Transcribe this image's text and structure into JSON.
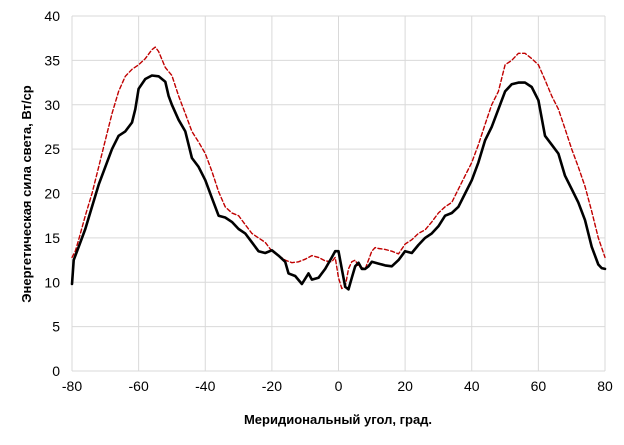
{
  "chart_data": {
    "type": "line",
    "xlabel": "Меридиональный  угол, град.",
    "ylabel": "Энергетическая  сила света, Вт/ср",
    "xlim": [
      -80,
      80
    ],
    "ylim": [
      0,
      40
    ],
    "x_ticks": [
      -80,
      -60,
      -40,
      -20,
      0,
      20,
      40,
      60,
      80
    ],
    "y_ticks": [
      0,
      5,
      10,
      15,
      20,
      25,
      30,
      35,
      40
    ],
    "x_tick_labels": [
      "-80",
      "-60",
      "-40",
      "-20",
      "0",
      "20",
      "40",
      "60",
      "80"
    ],
    "y_tick_labels": [
      "0",
      "5",
      "10",
      "15",
      "20",
      "25",
      "30",
      "35",
      "40"
    ],
    "grid": true,
    "legend": "none",
    "series": [
      {
        "color": "#000000",
        "style": "solid",
        "points": [
          [
            -80,
            9.8
          ],
          [
            -79.5,
            12.5
          ],
          [
            -78,
            14
          ],
          [
            -76,
            16
          ],
          [
            -74,
            18.5
          ],
          [
            -72,
            21
          ],
          [
            -70,
            23
          ],
          [
            -68,
            25
          ],
          [
            -66,
            26.5
          ],
          [
            -64,
            27
          ],
          [
            -62,
            28
          ],
          [
            -61,
            29.5
          ],
          [
            -60,
            31.8
          ],
          [
            -58,
            32.9
          ],
          [
            -56,
            33.3
          ],
          [
            -54,
            33.2
          ],
          [
            -52,
            32.6
          ],
          [
            -51,
            31
          ],
          [
            -50,
            30
          ],
          [
            -48,
            28.3
          ],
          [
            -46,
            27
          ],
          [
            -45,
            25.5
          ],
          [
            -44,
            24
          ],
          [
            -42,
            23
          ],
          [
            -40,
            21.5
          ],
          [
            -38,
            19.5
          ],
          [
            -36,
            17.5
          ],
          [
            -34,
            17.3
          ],
          [
            -32,
            16.8
          ],
          [
            -30,
            16
          ],
          [
            -28,
            15.5
          ],
          [
            -26,
            14.5
          ],
          [
            -24,
            13.5
          ],
          [
            -22,
            13.3
          ],
          [
            -20,
            13.6
          ],
          [
            -18,
            13
          ],
          [
            -16,
            12.3
          ],
          [
            -15,
            11
          ],
          [
            -13,
            10.7
          ],
          [
            -11,
            9.8
          ],
          [
            -9,
            11
          ],
          [
            -8,
            10.3
          ],
          [
            -6,
            10.5
          ],
          [
            -4,
            11.5
          ],
          [
            -2,
            12.8
          ],
          [
            -1,
            13.5
          ],
          [
            0,
            13.5
          ],
          [
            1,
            11.5
          ],
          [
            2,
            9.5
          ],
          [
            3,
            9.2
          ],
          [
            4,
            10.5
          ],
          [
            5,
            11.8
          ],
          [
            6,
            12.2
          ],
          [
            7,
            11.5
          ],
          [
            8,
            11.5
          ],
          [
            9,
            11.8
          ],
          [
            10,
            12.3
          ],
          [
            12,
            12.1
          ],
          [
            14,
            11.9
          ],
          [
            16,
            11.8
          ],
          [
            18,
            12.5
          ],
          [
            20,
            13.5
          ],
          [
            22,
            13.3
          ],
          [
            24,
            14.2
          ],
          [
            26,
            15
          ],
          [
            28,
            15.5
          ],
          [
            30,
            16.3
          ],
          [
            32,
            17.5
          ],
          [
            34,
            17.8
          ],
          [
            36,
            18.5
          ],
          [
            38,
            20
          ],
          [
            40,
            21.5
          ],
          [
            42,
            23.5
          ],
          [
            44,
            26
          ],
          [
            46,
            27.5
          ],
          [
            48,
            29.5
          ],
          [
            50,
            31.5
          ],
          [
            52,
            32.3
          ],
          [
            54,
            32.5
          ],
          [
            56,
            32.5
          ],
          [
            58,
            32
          ],
          [
            60,
            30.5
          ],
          [
            62,
            26.5
          ],
          [
            64,
            25.5
          ],
          [
            66,
            24.5
          ],
          [
            68,
            22
          ],
          [
            70,
            20.5
          ],
          [
            72,
            19
          ],
          [
            74,
            17
          ],
          [
            76,
            14
          ],
          [
            78,
            12
          ],
          [
            79,
            11.6
          ],
          [
            80,
            11.5
          ]
        ]
      },
      {
        "color": "#c00000",
        "style": "dashed",
        "points": [
          [
            -80,
            12.8
          ],
          [
            -79,
            13.5
          ],
          [
            -78,
            14.8
          ],
          [
            -76,
            17.5
          ],
          [
            -74,
            20
          ],
          [
            -72,
            23
          ],
          [
            -70,
            26
          ],
          [
            -68,
            29
          ],
          [
            -66,
            31.5
          ],
          [
            -64,
            33.2
          ],
          [
            -62,
            34
          ],
          [
            -60,
            34.5
          ],
          [
            -58,
            35.2
          ],
          [
            -56,
            36.2
          ],
          [
            -55,
            36.5
          ],
          [
            -54,
            36
          ],
          [
            -52,
            34.2
          ],
          [
            -50,
            33.3
          ],
          [
            -48,
            31
          ],
          [
            -46,
            29
          ],
          [
            -44,
            27
          ],
          [
            -42,
            25.8
          ],
          [
            -40,
            24.5
          ],
          [
            -38,
            22.5
          ],
          [
            -36,
            20.2
          ],
          [
            -34,
            18.5
          ],
          [
            -32,
            17.8
          ],
          [
            -30,
            17.5
          ],
          [
            -28,
            16.5
          ],
          [
            -26,
            15.5
          ],
          [
            -24,
            15
          ],
          [
            -22,
            14.5
          ],
          [
            -20,
            13.5
          ],
          [
            -18,
            13
          ],
          [
            -16,
            12.5
          ],
          [
            -14,
            12.2
          ],
          [
            -12,
            12.3
          ],
          [
            -10,
            12.6
          ],
          [
            -8,
            13
          ],
          [
            -6,
            12.8
          ],
          [
            -4,
            12.4
          ],
          [
            -2,
            12.3
          ],
          [
            -1,
            12.8
          ],
          [
            0,
            10.5
          ],
          [
            1,
            9.3
          ],
          [
            2,
            9.5
          ],
          [
            3,
            11.5
          ],
          [
            4,
            12.3
          ],
          [
            5,
            12.5
          ],
          [
            6,
            11.8
          ],
          [
            8,
            11.5
          ],
          [
            10,
            13.5
          ],
          [
            11,
            13.9
          ],
          [
            12,
            13.8
          ],
          [
            14,
            13.7
          ],
          [
            16,
            13.5
          ],
          [
            18,
            13.2
          ],
          [
            20,
            14.3
          ],
          [
            22,
            14.8
          ],
          [
            24,
            15.5
          ],
          [
            26,
            15.9
          ],
          [
            28,
            16.8
          ],
          [
            30,
            17.8
          ],
          [
            32,
            18.5
          ],
          [
            34,
            19
          ],
          [
            36,
            20.5
          ],
          [
            38,
            22
          ],
          [
            40,
            23.5
          ],
          [
            42,
            25.5
          ],
          [
            44,
            27.8
          ],
          [
            46,
            30
          ],
          [
            48,
            31.5
          ],
          [
            50,
            34.5
          ],
          [
            52,
            35
          ],
          [
            54,
            35.8
          ],
          [
            56,
            35.8
          ],
          [
            58,
            35.2
          ],
          [
            60,
            34.5
          ],
          [
            62,
            32.8
          ],
          [
            64,
            31
          ],
          [
            66,
            29.5
          ],
          [
            68,
            27.3
          ],
          [
            70,
            25
          ],
          [
            72,
            23
          ],
          [
            74,
            20.8
          ],
          [
            76,
            18
          ],
          [
            78,
            15
          ],
          [
            80,
            12.8
          ]
        ]
      }
    ]
  }
}
